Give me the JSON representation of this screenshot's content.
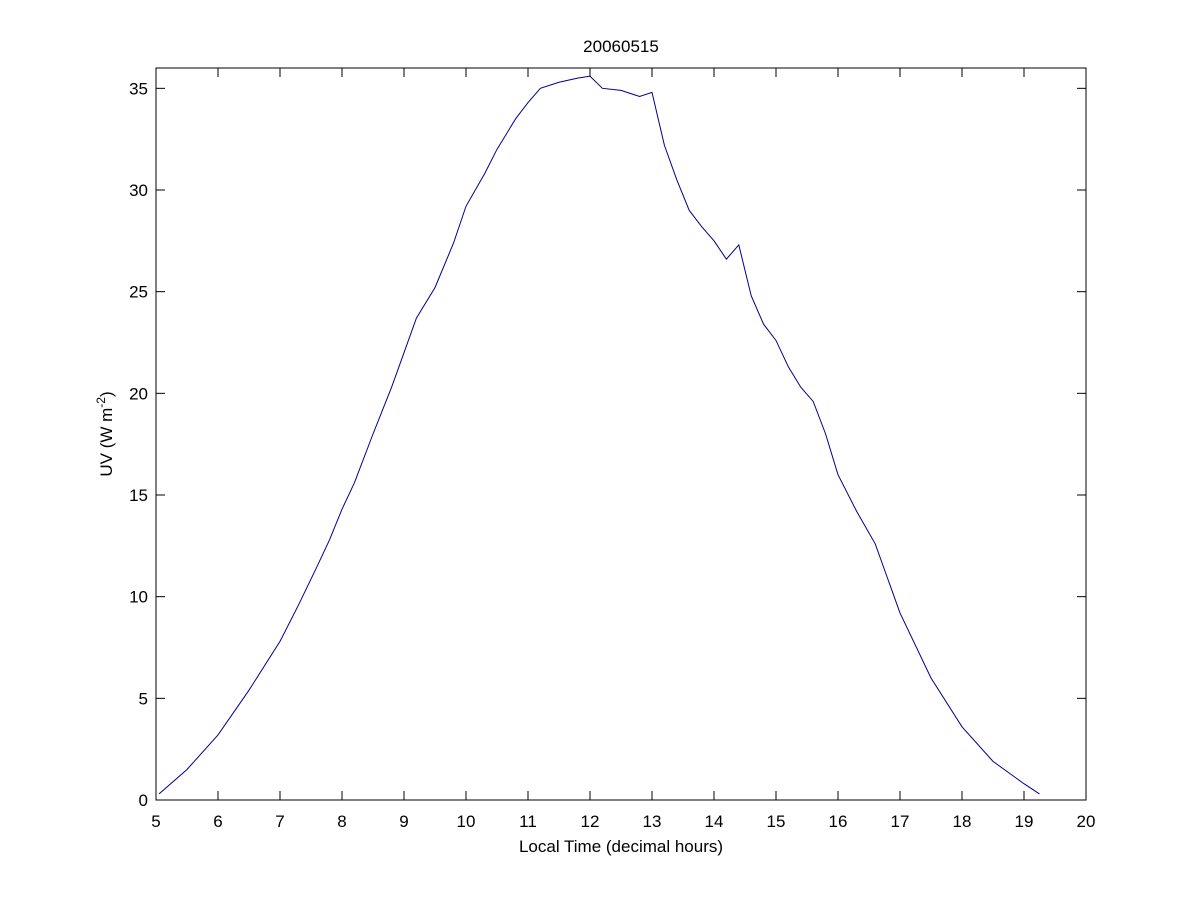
{
  "chart_data": {
    "type": "line",
    "title": "20060515",
    "xlabel": "Local Time (decimal hours)",
    "ylabel": {
      "text": "UV (W m",
      "superscript": "-2",
      "suffix": ")"
    },
    "xlim": [
      5,
      20
    ],
    "ylim": [
      0,
      36
    ],
    "xticks": [
      5,
      6,
      7,
      8,
      9,
      10,
      11,
      12,
      13,
      14,
      15,
      16,
      17,
      18,
      19,
      20
    ],
    "yticks": [
      0,
      5,
      10,
      15,
      20,
      25,
      30,
      35
    ],
    "grid": false,
    "legend": "none",
    "series": [
      {
        "color": "#00008B",
        "x": [
          5.05,
          5.5,
          6.0,
          6.5,
          7.0,
          7.3,
          7.6,
          7.8,
          8.0,
          8.2,
          8.5,
          8.8,
          9.0,
          9.2,
          9.5,
          9.8,
          10.0,
          10.3,
          10.5,
          10.8,
          11.0,
          11.2,
          11.5,
          11.8,
          12.0,
          12.2,
          12.5,
          12.8,
          13.0,
          13.2,
          13.4,
          13.6,
          13.8,
          14.0,
          14.2,
          14.4,
          14.6,
          14.8,
          15.0,
          15.2,
          15.4,
          15.6,
          15.8,
          16.0,
          16.3,
          16.6,
          17.0,
          17.5,
          18.0,
          18.5,
          19.0,
          19.25
        ],
        "y": [
          0.3,
          1.5,
          3.2,
          5.4,
          7.8,
          9.6,
          11.5,
          12.8,
          14.3,
          15.6,
          18.0,
          20.3,
          22.0,
          23.7,
          25.2,
          27.4,
          29.2,
          30.8,
          32.0,
          33.5,
          34.3,
          35.0,
          35.3,
          35.5,
          35.6,
          35.0,
          34.9,
          34.6,
          34.8,
          32.2,
          30.5,
          29.0,
          28.2,
          27.5,
          26.6,
          27.3,
          24.8,
          23.4,
          22.6,
          21.3,
          20.3,
          19.6,
          18.0,
          16.0,
          14.2,
          12.6,
          9.2,
          6.0,
          3.6,
          1.9,
          0.8,
          0.3
        ]
      }
    ]
  }
}
